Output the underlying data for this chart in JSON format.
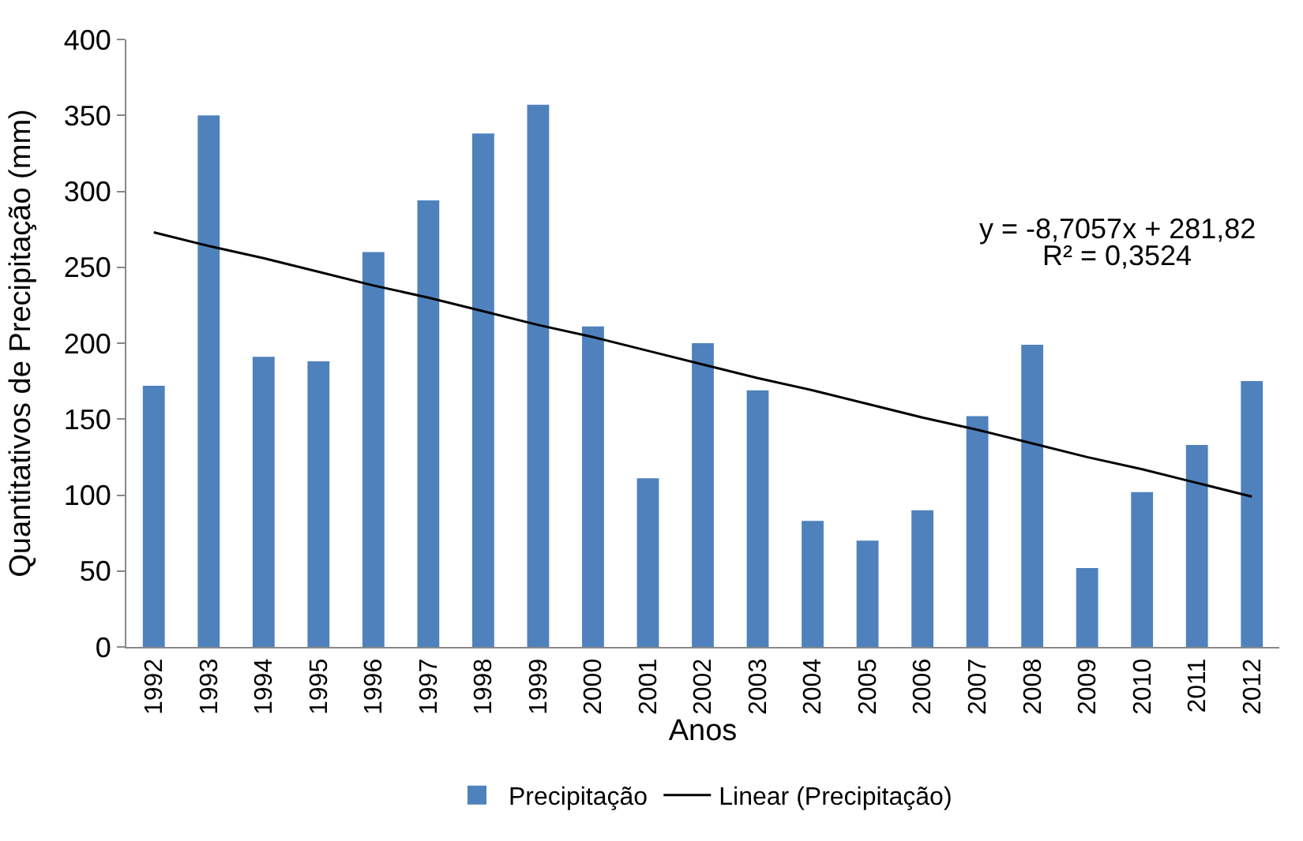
{
  "chart_data": {
    "type": "bar",
    "xlabel": "Anos",
    "ylabel": "Quantitativos de Precipitação (mm)",
    "categories": [
      "1992",
      "1993",
      "1994",
      "1995",
      "1996",
      "1997",
      "1998",
      "1999",
      "2000",
      "2001",
      "2002",
      "2003",
      "2004",
      "2005",
      "2006",
      "2007",
      "2008",
      "2009",
      "2010",
      "2011",
      "2012"
    ],
    "series": [
      {
        "name": "Precipitação",
        "color": "#4f81bd",
        "values": [
          172,
          350,
          191,
          188,
          260,
          294,
          338,
          357,
          211,
          111,
          200,
          169,
          83,
          70,
          90,
          152,
          199,
          52,
          102,
          133,
          175
        ]
      },
      {
        "name": "Linear (Precipitação)",
        "type": "line",
        "color": "#000000",
        "values": [
          273,
          264,
          256,
          247,
          238,
          230,
          221,
          212,
          204,
          195,
          186,
          177,
          169,
          160,
          151,
          143,
          134,
          125,
          117,
          108,
          99
        ]
      }
    ],
    "annotations": [
      "y = -8,7057x + 281,82",
      "R² = 0,3524"
    ],
    "ylim": [
      0,
      400
    ],
    "yticks": [
      0,
      50,
      100,
      150,
      200,
      250,
      300,
      350,
      400
    ],
    "legend": "bottom"
  }
}
